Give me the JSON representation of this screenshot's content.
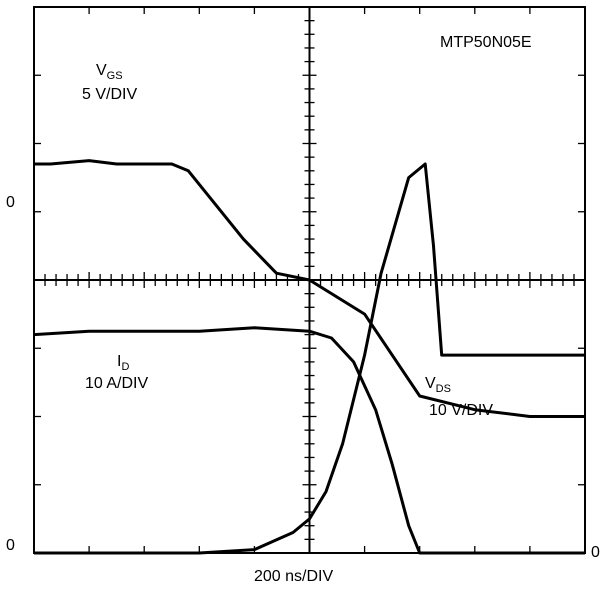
{
  "chart_data": {
    "type": "line",
    "device": "MTP50N05E",
    "time_base": "200 ns/DIV",
    "grid": {
      "x_divisions": 10,
      "y_divisions": 8,
      "minor_ticks_per_division": 5
    },
    "x_unit": "divisions",
    "x_range": [
      0,
      10
    ],
    "y_range": [
      0,
      8
    ],
    "zero_levels": {
      "top": 2,
      "bottom_left": 0,
      "bottom_right": 0
    },
    "zero_labels": {
      "top": "0",
      "bottom_left": "0",
      "bottom_right": "0"
    },
    "series": [
      {
        "name": "V_GS",
        "scale": "5 V/DIV",
        "trace": "top",
        "x": [
          0,
          0.3,
          1.0,
          1.5,
          2.0,
          2.5,
          2.8,
          3.2,
          3.8,
          4.4,
          5.0,
          6.0,
          7.0,
          8.0,
          9.0,
          10.0
        ],
        "y": [
          5.7,
          5.7,
          5.75,
          5.7,
          5.7,
          5.7,
          5.6,
          5.2,
          4.6,
          4.1,
          4.0,
          3.5,
          2.3,
          2.1,
          2.0,
          2.0
        ]
      },
      {
        "name": "I_D",
        "scale": "10 A/DIV",
        "trace": "bottom_left",
        "x": [
          0,
          1.0,
          2.0,
          3.0,
          4.0,
          5.0,
          5.4,
          5.8,
          6.2,
          6.5,
          6.8,
          7.0,
          8.0,
          9.0,
          10.0
        ],
        "y": [
          3.2,
          3.25,
          3.25,
          3.25,
          3.3,
          3.25,
          3.15,
          2.8,
          2.1,
          1.3,
          0.4,
          0.0,
          0.0,
          0.0,
          0.0
        ]
      },
      {
        "name": "V_DS",
        "scale": "10 V/DIV",
        "trace": "bottom_right",
        "x": [
          0,
          1.0,
          2.0,
          3.0,
          4.0,
          4.7,
          5.0,
          5.3,
          5.6,
          6.0,
          6.3,
          6.8,
          7.1,
          7.25,
          7.4,
          8.0,
          9.0,
          10.0
        ],
        "y": [
          0.0,
          0.0,
          0.0,
          0.0,
          0.05,
          0.3,
          0.5,
          0.9,
          1.6,
          2.9,
          4.1,
          5.5,
          5.7,
          4.5,
          2.9,
          2.9,
          2.9,
          2.9
        ]
      }
    ]
  },
  "labels": {
    "device": "MTP50N05E",
    "vgs_name": "V",
    "vgs_sub": "GS",
    "vgs_scale": "5 V/DIV",
    "id_name": "I",
    "id_sub": "D",
    "id_scale": "10 A/DIV",
    "vds_name": "V",
    "vds_sub": "DS",
    "vds_scale": "10 V/DIV",
    "time_base": "200 ns/DIV",
    "zero_top": "0",
    "zero_bottom_left": "0",
    "zero_bottom_right": "0"
  }
}
